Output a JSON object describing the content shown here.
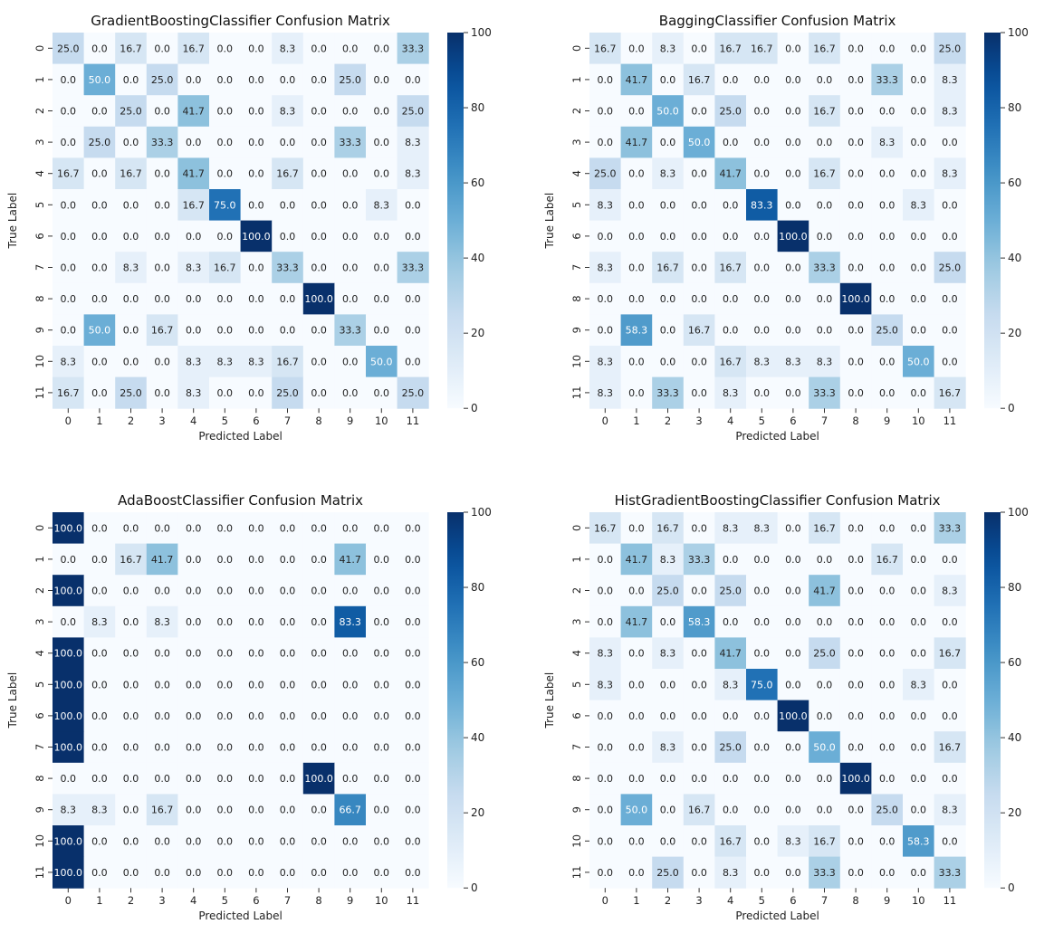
{
  "chart_data": [
    {
      "type": "heatmap",
      "title": "GradientBoostingClassifier Confusion Matrix",
      "xlabel": "Predicted Label",
      "ylabel": "True Label",
      "x_ticks": [
        "0",
        "1",
        "2",
        "3",
        "4",
        "5",
        "6",
        "7",
        "8",
        "9",
        "10",
        "11"
      ],
      "y_ticks": [
        "0",
        "1",
        "2",
        "3",
        "4",
        "5",
        "6",
        "7",
        "8",
        "9",
        "10",
        "11"
      ],
      "colorbar": {
        "range": [
          0,
          100
        ],
        "ticks": [
          "0",
          "20",
          "40",
          "60",
          "80",
          "100"
        ],
        "colormap": "Blues"
      },
      "values": [
        [
          25.0,
          0.0,
          16.7,
          0.0,
          16.7,
          0.0,
          0.0,
          8.3,
          0.0,
          0.0,
          0.0,
          33.3
        ],
        [
          0.0,
          50.0,
          0.0,
          25.0,
          0.0,
          0.0,
          0.0,
          0.0,
          0.0,
          25.0,
          0.0,
          0.0
        ],
        [
          0.0,
          0.0,
          25.0,
          0.0,
          41.7,
          0.0,
          0.0,
          8.3,
          0.0,
          0.0,
          0.0,
          25.0
        ],
        [
          0.0,
          25.0,
          0.0,
          33.3,
          0.0,
          0.0,
          0.0,
          0.0,
          0.0,
          33.3,
          0.0,
          8.3
        ],
        [
          16.7,
          0.0,
          16.7,
          0.0,
          41.7,
          0.0,
          0.0,
          16.7,
          0.0,
          0.0,
          0.0,
          8.3
        ],
        [
          0.0,
          0.0,
          0.0,
          0.0,
          16.7,
          75.0,
          0.0,
          0.0,
          0.0,
          0.0,
          8.3,
          0.0
        ],
        [
          0.0,
          0.0,
          0.0,
          0.0,
          0.0,
          0.0,
          100.0,
          0.0,
          0.0,
          0.0,
          0.0,
          0.0
        ],
        [
          0.0,
          0.0,
          8.3,
          0.0,
          8.3,
          16.7,
          0.0,
          33.3,
          0.0,
          0.0,
          0.0,
          33.3
        ],
        [
          0.0,
          0.0,
          0.0,
          0.0,
          0.0,
          0.0,
          0.0,
          0.0,
          100.0,
          0.0,
          0.0,
          0.0
        ],
        [
          0.0,
          50.0,
          0.0,
          16.7,
          0.0,
          0.0,
          0.0,
          0.0,
          0.0,
          33.3,
          0.0,
          0.0
        ],
        [
          8.3,
          0.0,
          0.0,
          0.0,
          8.3,
          8.3,
          8.3,
          16.7,
          0.0,
          0.0,
          50.0,
          0.0
        ],
        [
          16.7,
          0.0,
          25.0,
          0.0,
          8.3,
          0.0,
          0.0,
          25.0,
          0.0,
          0.0,
          0.0,
          25.0
        ]
      ]
    },
    {
      "type": "heatmap",
      "title": "BaggingClassifier Confusion Matrix",
      "xlabel": "Predicted Label",
      "ylabel": "True Label",
      "x_ticks": [
        "0",
        "1",
        "2",
        "3",
        "4",
        "5",
        "6",
        "7",
        "8",
        "9",
        "10",
        "11"
      ],
      "y_ticks": [
        "0",
        "1",
        "2",
        "3",
        "4",
        "5",
        "6",
        "7",
        "8",
        "9",
        "10",
        "11"
      ],
      "colorbar": {
        "range": [
          0,
          100
        ],
        "ticks": [
          "0",
          "20",
          "40",
          "60",
          "80",
          "100"
        ],
        "colormap": "Blues"
      },
      "values": [
        [
          16.7,
          0.0,
          8.3,
          0.0,
          16.7,
          16.7,
          0.0,
          16.7,
          0.0,
          0.0,
          0.0,
          25.0
        ],
        [
          0.0,
          41.7,
          0.0,
          16.7,
          0.0,
          0.0,
          0.0,
          0.0,
          0.0,
          33.3,
          0.0,
          8.3
        ],
        [
          0.0,
          0.0,
          50.0,
          0.0,
          25.0,
          0.0,
          0.0,
          16.7,
          0.0,
          0.0,
          0.0,
          8.3
        ],
        [
          0.0,
          41.7,
          0.0,
          50.0,
          0.0,
          0.0,
          0.0,
          0.0,
          0.0,
          8.3,
          0.0,
          0.0
        ],
        [
          25.0,
          0.0,
          8.3,
          0.0,
          41.7,
          0.0,
          0.0,
          16.7,
          0.0,
          0.0,
          0.0,
          8.3
        ],
        [
          8.3,
          0.0,
          0.0,
          0.0,
          0.0,
          83.3,
          0.0,
          0.0,
          0.0,
          0.0,
          8.3,
          0.0
        ],
        [
          0.0,
          0.0,
          0.0,
          0.0,
          0.0,
          0.0,
          100.0,
          0.0,
          0.0,
          0.0,
          0.0,
          0.0
        ],
        [
          8.3,
          0.0,
          16.7,
          0.0,
          16.7,
          0.0,
          0.0,
          33.3,
          0.0,
          0.0,
          0.0,
          25.0
        ],
        [
          0.0,
          0.0,
          0.0,
          0.0,
          0.0,
          0.0,
          0.0,
          0.0,
          100.0,
          0.0,
          0.0,
          0.0
        ],
        [
          0.0,
          58.3,
          0.0,
          16.7,
          0.0,
          0.0,
          0.0,
          0.0,
          0.0,
          25.0,
          0.0,
          0.0
        ],
        [
          8.3,
          0.0,
          0.0,
          0.0,
          16.7,
          8.3,
          8.3,
          8.3,
          0.0,
          0.0,
          50.0,
          0.0
        ],
        [
          8.3,
          0.0,
          33.3,
          0.0,
          8.3,
          0.0,
          0.0,
          33.3,
          0.0,
          0.0,
          0.0,
          16.7
        ]
      ]
    },
    {
      "type": "heatmap",
      "title": "AdaBoostClassifier Confusion Matrix",
      "xlabel": "Predicted Label",
      "ylabel": "True Label",
      "x_ticks": [
        "0",
        "1",
        "2",
        "3",
        "4",
        "5",
        "6",
        "7",
        "8",
        "9",
        "10",
        "11"
      ],
      "y_ticks": [
        "0",
        "1",
        "2",
        "3",
        "4",
        "5",
        "6",
        "7",
        "8",
        "9",
        "10",
        "11"
      ],
      "colorbar": {
        "range": [
          0,
          100
        ],
        "ticks": [
          "0",
          "20",
          "40",
          "60",
          "80",
          "100"
        ],
        "colormap": "Blues"
      },
      "values": [
        [
          100.0,
          0.0,
          0.0,
          0.0,
          0.0,
          0.0,
          0.0,
          0.0,
          0.0,
          0.0,
          0.0,
          0.0
        ],
        [
          0.0,
          0.0,
          16.7,
          41.7,
          0.0,
          0.0,
          0.0,
          0.0,
          0.0,
          41.7,
          0.0,
          0.0
        ],
        [
          100.0,
          0.0,
          0.0,
          0.0,
          0.0,
          0.0,
          0.0,
          0.0,
          0.0,
          0.0,
          0.0,
          0.0
        ],
        [
          0.0,
          8.3,
          0.0,
          8.3,
          0.0,
          0.0,
          0.0,
          0.0,
          0.0,
          83.3,
          0.0,
          0.0
        ],
        [
          100.0,
          0.0,
          0.0,
          0.0,
          0.0,
          0.0,
          0.0,
          0.0,
          0.0,
          0.0,
          0.0,
          0.0
        ],
        [
          100.0,
          0.0,
          0.0,
          0.0,
          0.0,
          0.0,
          0.0,
          0.0,
          0.0,
          0.0,
          0.0,
          0.0
        ],
        [
          100.0,
          0.0,
          0.0,
          0.0,
          0.0,
          0.0,
          0.0,
          0.0,
          0.0,
          0.0,
          0.0,
          0.0
        ],
        [
          100.0,
          0.0,
          0.0,
          0.0,
          0.0,
          0.0,
          0.0,
          0.0,
          0.0,
          0.0,
          0.0,
          0.0
        ],
        [
          0.0,
          0.0,
          0.0,
          0.0,
          0.0,
          0.0,
          0.0,
          0.0,
          100.0,
          0.0,
          0.0,
          0.0
        ],
        [
          8.3,
          8.3,
          0.0,
          16.7,
          0.0,
          0.0,
          0.0,
          0.0,
          0.0,
          66.7,
          0.0,
          0.0
        ],
        [
          100.0,
          0.0,
          0.0,
          0.0,
          0.0,
          0.0,
          0.0,
          0.0,
          0.0,
          0.0,
          0.0,
          0.0
        ],
        [
          100.0,
          0.0,
          0.0,
          0.0,
          0.0,
          0.0,
          0.0,
          0.0,
          0.0,
          0.0,
          0.0,
          0.0
        ]
      ]
    },
    {
      "type": "heatmap",
      "title": "HistGradientBoostingClassifier Confusion Matrix",
      "xlabel": "Predicted Label",
      "ylabel": "True Label",
      "x_ticks": [
        "0",
        "1",
        "2",
        "3",
        "4",
        "5",
        "6",
        "7",
        "8",
        "9",
        "10",
        "11"
      ],
      "y_ticks": [
        "0",
        "1",
        "2",
        "3",
        "4",
        "5",
        "6",
        "7",
        "8",
        "9",
        "10",
        "11"
      ],
      "colorbar": {
        "range": [
          0,
          100
        ],
        "ticks": [
          "0",
          "20",
          "40",
          "60",
          "80",
          "100"
        ],
        "colormap": "Blues"
      },
      "values": [
        [
          16.7,
          0.0,
          16.7,
          0.0,
          8.3,
          8.3,
          0.0,
          16.7,
          0.0,
          0.0,
          0.0,
          33.3
        ],
        [
          0.0,
          41.7,
          8.3,
          33.3,
          0.0,
          0.0,
          0.0,
          0.0,
          0.0,
          16.7,
          0.0,
          0.0
        ],
        [
          0.0,
          0.0,
          25.0,
          0.0,
          25.0,
          0.0,
          0.0,
          41.7,
          0.0,
          0.0,
          0.0,
          8.3
        ],
        [
          0.0,
          41.7,
          0.0,
          58.3,
          0.0,
          0.0,
          0.0,
          0.0,
          0.0,
          0.0,
          0.0,
          0.0
        ],
        [
          8.3,
          0.0,
          8.3,
          0.0,
          41.7,
          0.0,
          0.0,
          25.0,
          0.0,
          0.0,
          0.0,
          16.7
        ],
        [
          8.3,
          0.0,
          0.0,
          0.0,
          8.3,
          75.0,
          0.0,
          0.0,
          0.0,
          0.0,
          8.3,
          0.0
        ],
        [
          0.0,
          0.0,
          0.0,
          0.0,
          0.0,
          0.0,
          100.0,
          0.0,
          0.0,
          0.0,
          0.0,
          0.0
        ],
        [
          0.0,
          0.0,
          8.3,
          0.0,
          25.0,
          0.0,
          0.0,
          50.0,
          0.0,
          0.0,
          0.0,
          16.7
        ],
        [
          0.0,
          0.0,
          0.0,
          0.0,
          0.0,
          0.0,
          0.0,
          0.0,
          100.0,
          0.0,
          0.0,
          0.0
        ],
        [
          0.0,
          50.0,
          0.0,
          16.7,
          0.0,
          0.0,
          0.0,
          0.0,
          0.0,
          25.0,
          0.0,
          8.3
        ],
        [
          0.0,
          0.0,
          0.0,
          0.0,
          16.7,
          0.0,
          8.3,
          16.7,
          0.0,
          0.0,
          58.3,
          0.0
        ],
        [
          0.0,
          0.0,
          25.0,
          0.0,
          8.3,
          0.0,
          0.0,
          33.3,
          0.0,
          0.0,
          0.0,
          33.3
        ]
      ]
    }
  ]
}
